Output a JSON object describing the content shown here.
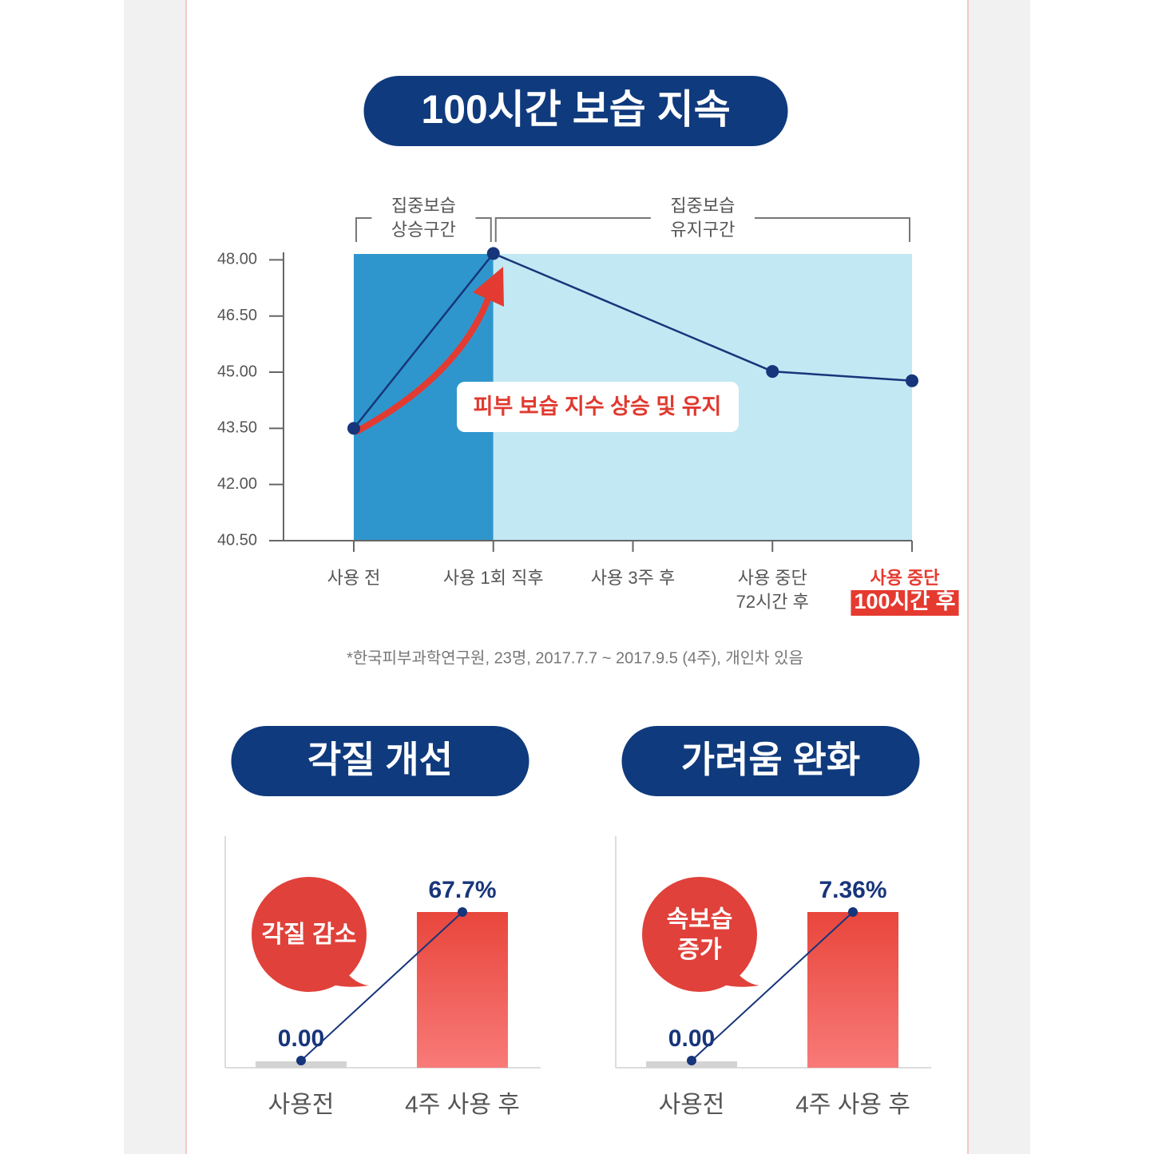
{
  "chart_data": [
    {
      "type": "line",
      "title": "100시간 보습 지속",
      "categories": [
        [
          "사용 전"
        ],
        [
          "사용 1회 직후"
        ],
        [
          "사용 3주 후"
        ],
        [
          "사용 중단",
          "72시간 후"
        ],
        [
          "사용 중단",
          "100시간 후"
        ]
      ],
      "highlight_category": 4,
      "series": [
        {
          "color": "#17357a",
          "values": [
            43.5,
            48.17,
            null,
            45.02,
            44.77
          ]
        }
      ],
      "ylim": [
        40.5,
        48.2
      ],
      "yticks": [
        {
          "value": 48,
          "label": "48.00"
        },
        {
          "value": 46.5,
          "label": "46.50"
        },
        {
          "value": 45,
          "label": "45.00"
        },
        {
          "value": 43.5,
          "label": "43.50"
        },
        {
          "value": 42,
          "label": "42.00"
        },
        {
          "value": 40.5,
          "label": "40.50"
        }
      ],
      "zones": [
        {
          "label": [
            "집중보습",
            "상승구간"
          ],
          "from": 0,
          "to": 1,
          "color": "#2f96cd"
        },
        {
          "label": [
            "집중보습",
            "유지구간"
          ],
          "from": 1,
          "to": 4,
          "color": "#c2e8f3"
        }
      ],
      "annotation": "피부 보습 지수 상승 및 유지",
      "footnote": "*한국피부과학연구원,  23명, 2017.7.7 ~ 2017.9.5 (4주), 개인차 있음"
    },
    {
      "type": "bar",
      "title": "각질 개선",
      "categories": [
        "사용전",
        "4주 사용 후"
      ],
      "values": [
        0,
        67.7
      ],
      "value_labels": [
        "0.00",
        "67.7%"
      ],
      "color": "#e8463c",
      "callout": [
        "각질 감소"
      ]
    },
    {
      "type": "bar",
      "title": "가려움 완화",
      "categories": [
        "사용전",
        "4주 사용 후"
      ],
      "values": [
        0,
        7.36
      ],
      "value_labels": [
        "0.00",
        "7.36%"
      ],
      "color": "#e8463c",
      "callout": [
        "속보습",
        "증가"
      ]
    }
  ]
}
